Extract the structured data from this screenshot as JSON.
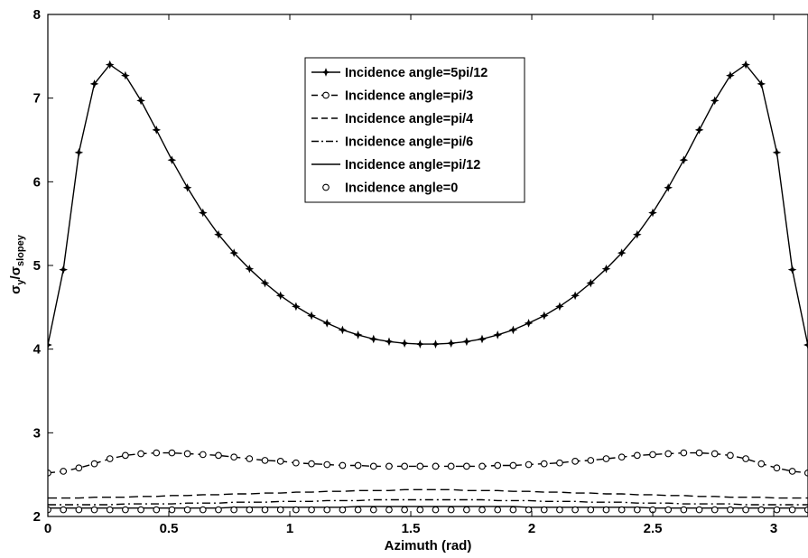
{
  "chart_data": {
    "type": "line",
    "xlabel": "Azimuth (rad)",
    "ylabel_main": "σ",
    "ylabel_main_sub": "y",
    "ylabel_sep": "/σ",
    "ylabel_denom_sub": "slopey",
    "xlim": [
      0,
      3.1416
    ],
    "ylim": [
      2,
      8
    ],
    "x_ticks": [
      0,
      0.5,
      1,
      1.5,
      2,
      2.5,
      3
    ],
    "x_tick_labels": [
      "0",
      "0.5",
      "1",
      "1.5",
      "2",
      "2.5",
      "3"
    ],
    "y_ticks": [
      2,
      3,
      4,
      5,
      6,
      7,
      8
    ],
    "y_tick_labels": [
      "2",
      "3",
      "4",
      "5",
      "6",
      "7",
      "8"
    ],
    "grid": false,
    "legend_position": "top-center",
    "x": [
      0,
      0.0641,
      0.1282,
      0.1923,
      0.2564,
      0.3205,
      0.3846,
      0.4487,
      0.5128,
      0.5769,
      0.641,
      0.7051,
      0.7692,
      0.8333,
      0.8974,
      0.9615,
      1.0256,
      1.0897,
      1.1538,
      1.2179,
      1.282,
      1.3461,
      1.4102,
      1.4743,
      1.5384,
      1.6025,
      1.6666,
      1.7307,
      1.7948,
      1.8589,
      1.923,
      1.9871,
      2.0512,
      2.1153,
      2.1794,
      2.2435,
      2.3076,
      2.3717,
      2.4358,
      2.4999,
      2.564,
      2.6281,
      2.6922,
      2.7563,
      2.8204,
      2.8845,
      2.9486,
      3.0127,
      3.0768,
      3.1409
    ],
    "series": [
      {
        "name": "Incidence angle=5pi/12",
        "style": "solid-star",
        "values": [
          4.05,
          4.95,
          6.35,
          7.17,
          7.4,
          7.27,
          6.97,
          6.62,
          6.26,
          5.93,
          5.63,
          5.37,
          5.15,
          4.96,
          4.79,
          4.64,
          4.51,
          4.4,
          4.31,
          4.23,
          4.17,
          4.12,
          4.09,
          4.07,
          4.06,
          4.06,
          4.07,
          4.09,
          4.12,
          4.17,
          4.23,
          4.31,
          4.4,
          4.51,
          4.64,
          4.79,
          4.96,
          5.15,
          5.37,
          5.63,
          5.93,
          6.26,
          6.62,
          6.97,
          7.27,
          7.4,
          7.17,
          6.35,
          4.95,
          4.05
        ]
      },
      {
        "name": "Incidence angle=pi/3",
        "style": "dashed-circle",
        "values": [
          2.52,
          2.54,
          2.58,
          2.63,
          2.69,
          2.73,
          2.75,
          2.76,
          2.76,
          2.75,
          2.74,
          2.73,
          2.71,
          2.69,
          2.67,
          2.66,
          2.64,
          2.63,
          2.62,
          2.61,
          2.61,
          2.6,
          2.6,
          2.6,
          2.6,
          2.6,
          2.6,
          2.6,
          2.6,
          2.61,
          2.61,
          2.62,
          2.63,
          2.64,
          2.66,
          2.67,
          2.69,
          2.71,
          2.73,
          2.74,
          2.75,
          2.76,
          2.76,
          2.75,
          2.73,
          2.69,
          2.63,
          2.58,
          2.54,
          2.52
        ]
      },
      {
        "name": "Incidence angle=pi/4",
        "style": "dashed",
        "values": [
          2.22,
          2.22,
          2.22,
          2.23,
          2.23,
          2.23,
          2.24,
          2.24,
          2.25,
          2.25,
          2.26,
          2.26,
          2.27,
          2.27,
          2.28,
          2.28,
          2.29,
          2.29,
          2.3,
          2.3,
          2.31,
          2.31,
          2.31,
          2.32,
          2.32,
          2.32,
          2.32,
          2.31,
          2.31,
          2.31,
          2.3,
          2.3,
          2.29,
          2.29,
          2.28,
          2.28,
          2.27,
          2.27,
          2.26,
          2.26,
          2.25,
          2.25,
          2.24,
          2.24,
          2.23,
          2.23,
          2.23,
          2.22,
          2.22,
          2.22
        ]
      },
      {
        "name": "Incidence angle=pi/6",
        "style": "dash-dot",
        "values": [
          2.14,
          2.14,
          2.14,
          2.14,
          2.14,
          2.15,
          2.15,
          2.15,
          2.15,
          2.16,
          2.16,
          2.16,
          2.17,
          2.17,
          2.17,
          2.18,
          2.18,
          2.18,
          2.19,
          2.19,
          2.19,
          2.2,
          2.2,
          2.2,
          2.2,
          2.2,
          2.2,
          2.2,
          2.2,
          2.19,
          2.19,
          2.19,
          2.18,
          2.18,
          2.18,
          2.17,
          2.17,
          2.17,
          2.16,
          2.16,
          2.16,
          2.15,
          2.15,
          2.15,
          2.15,
          2.14,
          2.14,
          2.14,
          2.14,
          2.14
        ]
      },
      {
        "name": "Incidence angle=pi/12",
        "style": "solid",
        "values": [
          2.1,
          2.1,
          2.1,
          2.1,
          2.1,
          2.1,
          2.1,
          2.1,
          2.1,
          2.1,
          2.1,
          2.1,
          2.11,
          2.11,
          2.11,
          2.11,
          2.11,
          2.11,
          2.11,
          2.11,
          2.12,
          2.12,
          2.12,
          2.12,
          2.12,
          2.12,
          2.12,
          2.12,
          2.12,
          2.12,
          2.12,
          2.11,
          2.11,
          2.11,
          2.11,
          2.11,
          2.11,
          2.11,
          2.11,
          2.1,
          2.1,
          2.1,
          2.1,
          2.1,
          2.1,
          2.1,
          2.1,
          2.1,
          2.1,
          2.1
        ]
      },
      {
        "name": "Incidence angle=0",
        "style": "circle",
        "values": [
          2.08,
          2.08,
          2.08,
          2.08,
          2.08,
          2.08,
          2.08,
          2.08,
          2.08,
          2.08,
          2.08,
          2.08,
          2.08,
          2.08,
          2.08,
          2.08,
          2.08,
          2.08,
          2.08,
          2.08,
          2.08,
          2.08,
          2.08,
          2.08,
          2.08,
          2.08,
          2.08,
          2.08,
          2.08,
          2.08,
          2.08,
          2.08,
          2.08,
          2.08,
          2.08,
          2.08,
          2.08,
          2.08,
          2.08,
          2.08,
          2.08,
          2.08,
          2.08,
          2.08,
          2.08,
          2.08,
          2.08,
          2.08,
          2.08,
          2.08
        ]
      }
    ]
  }
}
